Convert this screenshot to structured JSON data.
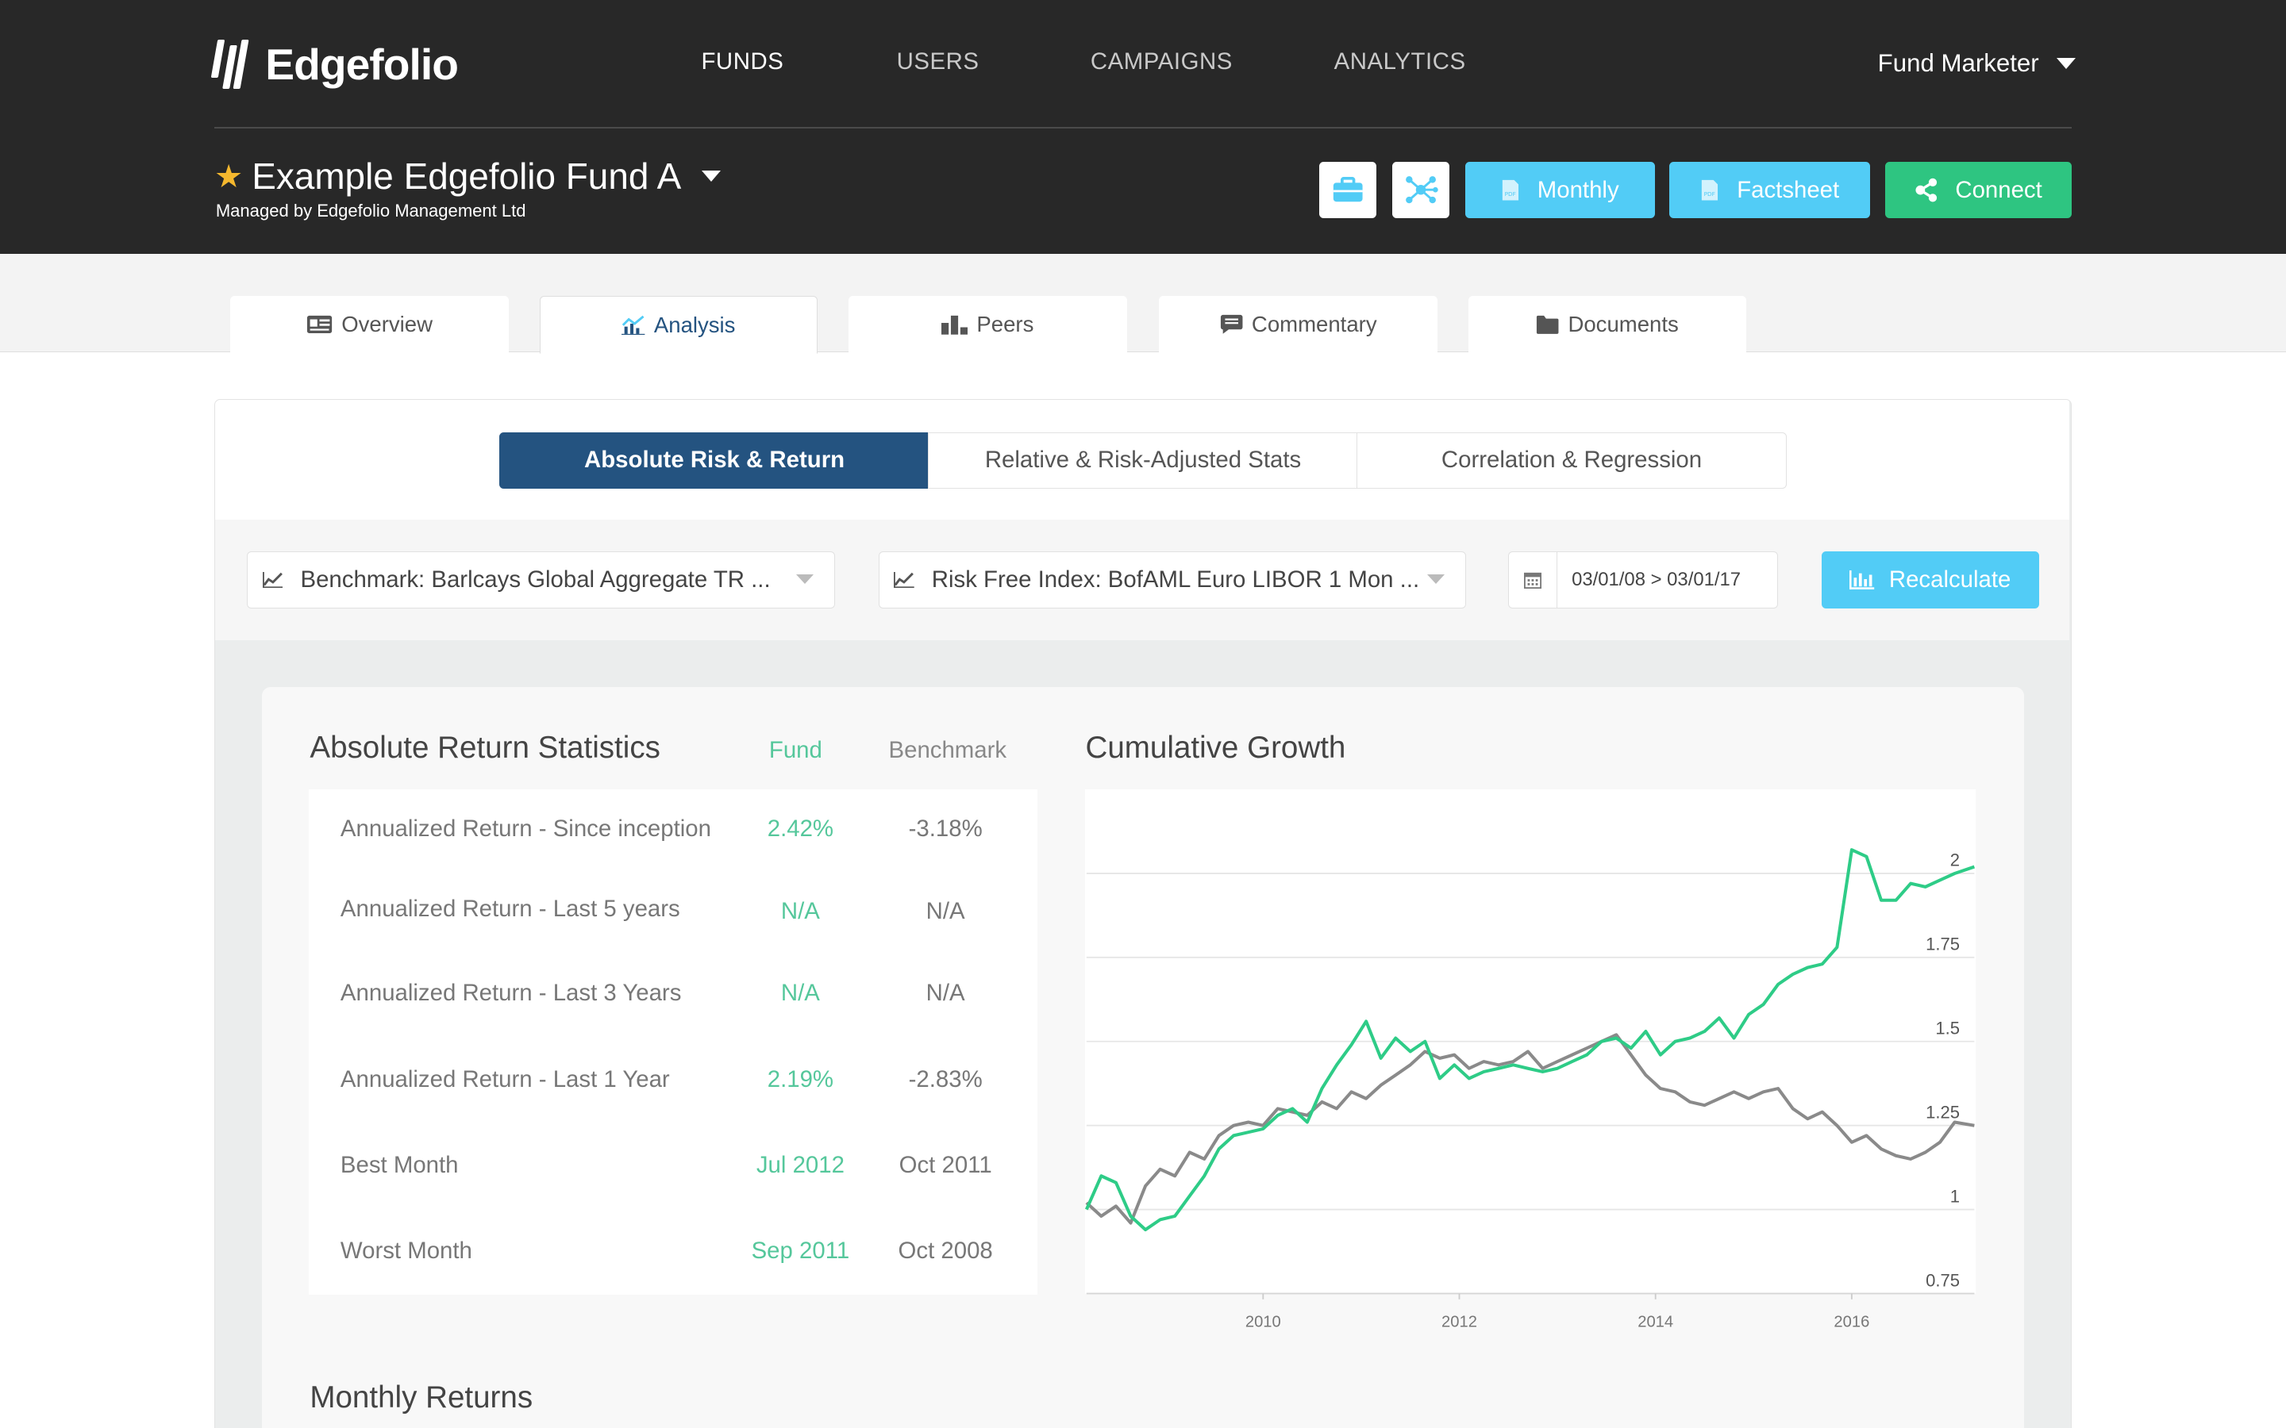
{
  "app": {
    "logo": "Edgefolio"
  },
  "nav": {
    "items": [
      "FUNDS",
      "USERS",
      "CAMPAIGNS",
      "ANALYTICS"
    ],
    "active": "FUNDS"
  },
  "user_menu": {
    "label": "Fund Marketer"
  },
  "fund": {
    "name": "Example Edgefolio Fund A",
    "managed_by": "Managed by Edgefolio Management Ltd"
  },
  "actions": {
    "monthly": "Monthly",
    "factsheet": "Factsheet",
    "connect": "Connect"
  },
  "tabs": [
    {
      "label": "Overview",
      "icon": "id-card-icon"
    },
    {
      "label": "Analysis",
      "icon": "line-chart-icon"
    },
    {
      "label": "Peers",
      "icon": "bar-chart-icon"
    },
    {
      "label": "Commentary",
      "icon": "comment-icon"
    },
    {
      "label": "Documents",
      "icon": "folder-icon"
    }
  ],
  "active_tab": "Analysis",
  "subtabs": [
    "Absolute Risk & Return",
    "Relative & Risk-Adjusted Stats",
    "Correlation & Regression"
  ],
  "active_subtab": "Absolute Risk & Return",
  "filters": {
    "benchmark": "Benchmark: Barlcays Global Aggregate TR ...",
    "risk_free": "Risk Free Index: BofAML Euro LIBOR 1 Mon ...",
    "date_range": "03/01/08 > 03/01/17",
    "recalculate": "Recalculate"
  },
  "stats": {
    "title": "Absolute Return Statistics",
    "col_fund": "Fund",
    "col_benchmark": "Benchmark",
    "rows": [
      {
        "label": "Annualized Return - Since inception",
        "fund": "2.42%",
        "benchmark": "-3.18%"
      },
      {
        "label": "Annualized Return - Last 5 years",
        "fund": "N/A",
        "benchmark": "N/A"
      },
      {
        "label": "Annualized Return - Last 3 Years",
        "fund": "N/A",
        "benchmark": "N/A"
      },
      {
        "label": "Annualized Return - Last 1 Year",
        "fund": "2.19%",
        "benchmark": "-2.83%"
      },
      {
        "label": "Best Month",
        "fund": "Jul 2012",
        "benchmark": "Oct 2011"
      },
      {
        "label": "Worst Month",
        "fund": "Sep 2011",
        "benchmark": "Oct 2008"
      }
    ]
  },
  "growth": {
    "title": "Cumulative Growth"
  },
  "monthly": {
    "title": "Monthly Returns"
  },
  "colors": {
    "fund": "#2ecc87",
    "benchmark": "#8a8a8a",
    "accent": "#245380",
    "cyan": "#52ccf6",
    "green": "#2ec581"
  },
  "chart_data": {
    "type": "line",
    "title": "Cumulative Growth",
    "x_ticks": [
      "2010",
      "2012",
      "2014",
      "2016"
    ],
    "y_ticks": [
      0.75,
      1,
      1.25,
      1.5,
      1.75,
      2
    ],
    "ylim": [
      0.75,
      2.25
    ],
    "xlim": [
      2008.2,
      2017.25
    ],
    "grid": true,
    "y_axis_side": "right",
    "series": [
      {
        "name": "Fund",
        "color": "#2ecc87",
        "x": [
          2008.2,
          2008.35,
          2008.5,
          2008.65,
          2008.8,
          2008.95,
          2009.1,
          2009.25,
          2009.4,
          2009.55,
          2009.7,
          2009.85,
          2010.0,
          2010.15,
          2010.3,
          2010.45,
          2010.6,
          2010.75,
          2010.9,
          2011.05,
          2011.2,
          2011.35,
          2011.5,
          2011.65,
          2011.8,
          2011.95,
          2012.1,
          2012.25,
          2012.4,
          2012.55,
          2012.7,
          2012.85,
          2013.0,
          2013.15,
          2013.3,
          2013.45,
          2013.6,
          2013.75,
          2013.9,
          2014.05,
          2014.2,
          2014.35,
          2014.5,
          2014.65,
          2014.8,
          2014.95,
          2015.1,
          2015.25,
          2015.4,
          2015.55,
          2015.7,
          2015.85,
          2016.0,
          2016.15,
          2016.3,
          2016.45,
          2016.6,
          2016.75,
          2016.9,
          2017.05,
          2017.25
        ],
        "y": [
          1.0,
          1.1,
          1.08,
          0.98,
          0.94,
          0.97,
          0.98,
          1.04,
          1.1,
          1.18,
          1.22,
          1.23,
          1.24,
          1.28,
          1.3,
          1.26,
          1.36,
          1.43,
          1.49,
          1.56,
          1.45,
          1.51,
          1.47,
          1.5,
          1.39,
          1.43,
          1.39,
          1.41,
          1.42,
          1.43,
          1.42,
          1.41,
          1.42,
          1.44,
          1.46,
          1.5,
          1.51,
          1.48,
          1.53,
          1.46,
          1.5,
          1.51,
          1.53,
          1.57,
          1.51,
          1.58,
          1.61,
          1.67,
          1.7,
          1.72,
          1.73,
          1.78,
          2.07,
          2.05,
          1.92,
          1.92,
          1.97,
          1.96,
          1.98,
          2.0,
          2.02
        ]
      },
      {
        "name": "Benchmark",
        "color": "#8a8a8a",
        "x": [
          2008.2,
          2008.35,
          2008.5,
          2008.65,
          2008.8,
          2008.95,
          2009.1,
          2009.25,
          2009.4,
          2009.55,
          2009.7,
          2009.85,
          2010.0,
          2010.15,
          2010.3,
          2010.45,
          2010.6,
          2010.75,
          2010.9,
          2011.05,
          2011.2,
          2011.35,
          2011.5,
          2011.65,
          2011.8,
          2011.95,
          2012.1,
          2012.25,
          2012.4,
          2012.55,
          2012.7,
          2012.85,
          2013.0,
          2013.15,
          2013.3,
          2013.45,
          2013.6,
          2013.75,
          2013.9,
          2014.05,
          2014.2,
          2014.35,
          2014.5,
          2014.65,
          2014.8,
          2014.95,
          2015.1,
          2015.25,
          2015.4,
          2015.55,
          2015.7,
          2015.85,
          2016.0,
          2016.15,
          2016.3,
          2016.45,
          2016.6,
          2016.75,
          2016.9,
          2017.05,
          2017.25
        ],
        "y": [
          1.02,
          0.98,
          1.01,
          0.96,
          1.07,
          1.12,
          1.1,
          1.17,
          1.15,
          1.22,
          1.25,
          1.26,
          1.25,
          1.3,
          1.29,
          1.28,
          1.32,
          1.3,
          1.35,
          1.33,
          1.37,
          1.4,
          1.43,
          1.47,
          1.45,
          1.46,
          1.42,
          1.44,
          1.43,
          1.44,
          1.47,
          1.42,
          1.44,
          1.46,
          1.48,
          1.5,
          1.52,
          1.46,
          1.4,
          1.36,
          1.35,
          1.32,
          1.31,
          1.33,
          1.35,
          1.33,
          1.35,
          1.36,
          1.3,
          1.27,
          1.29,
          1.25,
          1.2,
          1.22,
          1.18,
          1.16,
          1.15,
          1.17,
          1.2,
          1.26,
          1.25
        ]
      }
    ]
  }
}
